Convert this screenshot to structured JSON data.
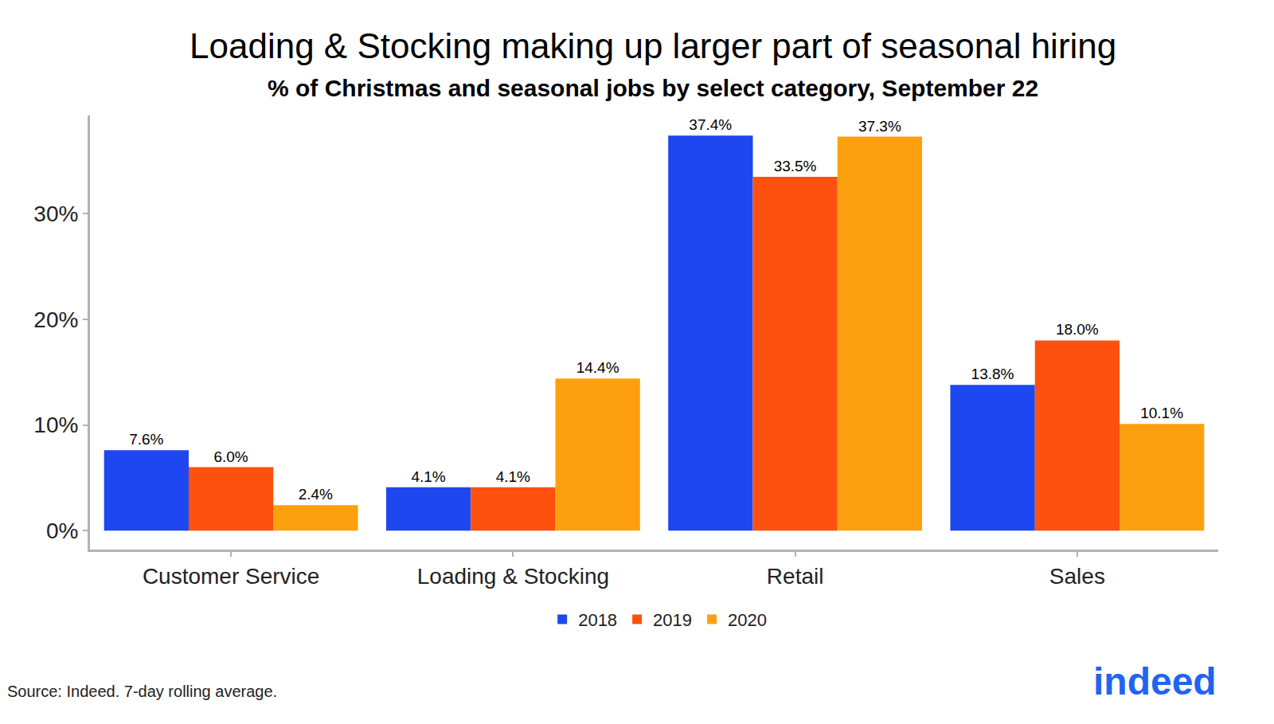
{
  "chart_data": {
    "type": "bar",
    "title": "Loading & Stocking making up larger part of seasonal hiring",
    "subtitle": "% of Christmas and seasonal jobs by select category, September 22",
    "categories": [
      "Customer Service",
      "Loading & Stocking",
      "Retail",
      "Sales"
    ],
    "series": [
      {
        "name": "2018",
        "color": "#1f47ef",
        "values": [
          7.6,
          4.1,
          37.4,
          13.8
        ],
        "value_labels": [
          "7.6%",
          "4.1%",
          "37.4%",
          "13.8%"
        ]
      },
      {
        "name": "2019",
        "color": "#fe500f",
        "values": [
          6.0,
          4.1,
          33.5,
          18.0
        ],
        "value_labels": [
          "6.0%",
          "4.1%",
          "33.5%",
          "18.0%"
        ]
      },
      {
        "name": "2020",
        "color": "#fda00f",
        "values": [
          2.4,
          14.4,
          37.3,
          10.1
        ],
        "value_labels": [
          "2.4%",
          "14.4%",
          "37.3%",
          "10.1%"
        ]
      }
    ],
    "ylim": [
      -1.8,
      39.3
    ],
    "yticks": [
      {
        "value": 0,
        "label": "0%"
      },
      {
        "value": 10,
        "label": "10%"
      },
      {
        "value": 20,
        "label": "20%"
      },
      {
        "value": 30,
        "label": "30%"
      }
    ],
    "grid": false,
    "legend": "bottom",
    "data_labels": true,
    "annotations": [
      "Source: Indeed. 7-day rolling average.",
      "indeed"
    ]
  }
}
